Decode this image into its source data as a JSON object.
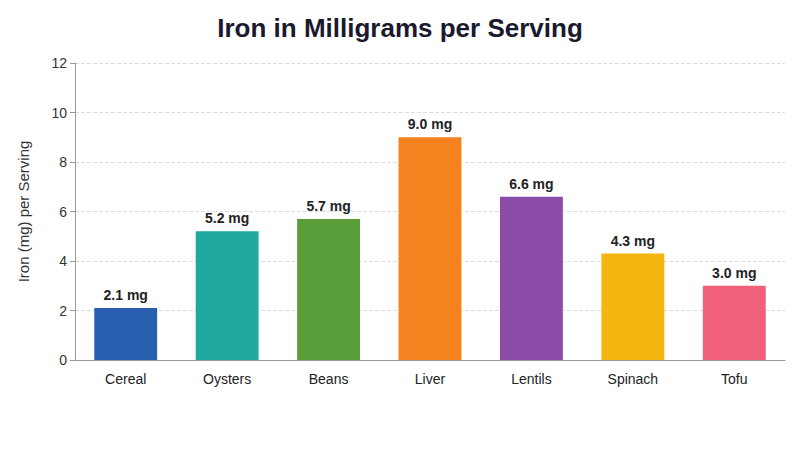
{
  "chart_data": {
    "type": "bar",
    "title": "Iron in Milligrams per Serving",
    "y_label": "Iron (mg) per Serving",
    "categories": [
      "Cereal",
      "Oysters",
      "Beans",
      "Liver",
      "Lentils",
      "Spinach",
      "Tofu"
    ],
    "values": [
      2.1,
      5.2,
      5.7,
      9.0,
      6.6,
      4.3,
      3.0
    ],
    "value_labels": [
      "2.1 mg",
      "5.2 mg",
      "5.7 mg",
      "9.0 mg",
      "6.6 mg",
      "4.3 mg",
      "3.0 mg"
    ],
    "colors": [
      "#2a5fb0",
      "#1fa89f",
      "#5a9e3a",
      "#f5821f",
      "#8a4ca8",
      "#f5b50f",
      "#f0607a"
    ],
    "ylim": [
      0,
      12
    ],
    "yticks": [
      0,
      2,
      4,
      6,
      8,
      10,
      12
    ],
    "grid": true,
    "data_labels": true
  }
}
